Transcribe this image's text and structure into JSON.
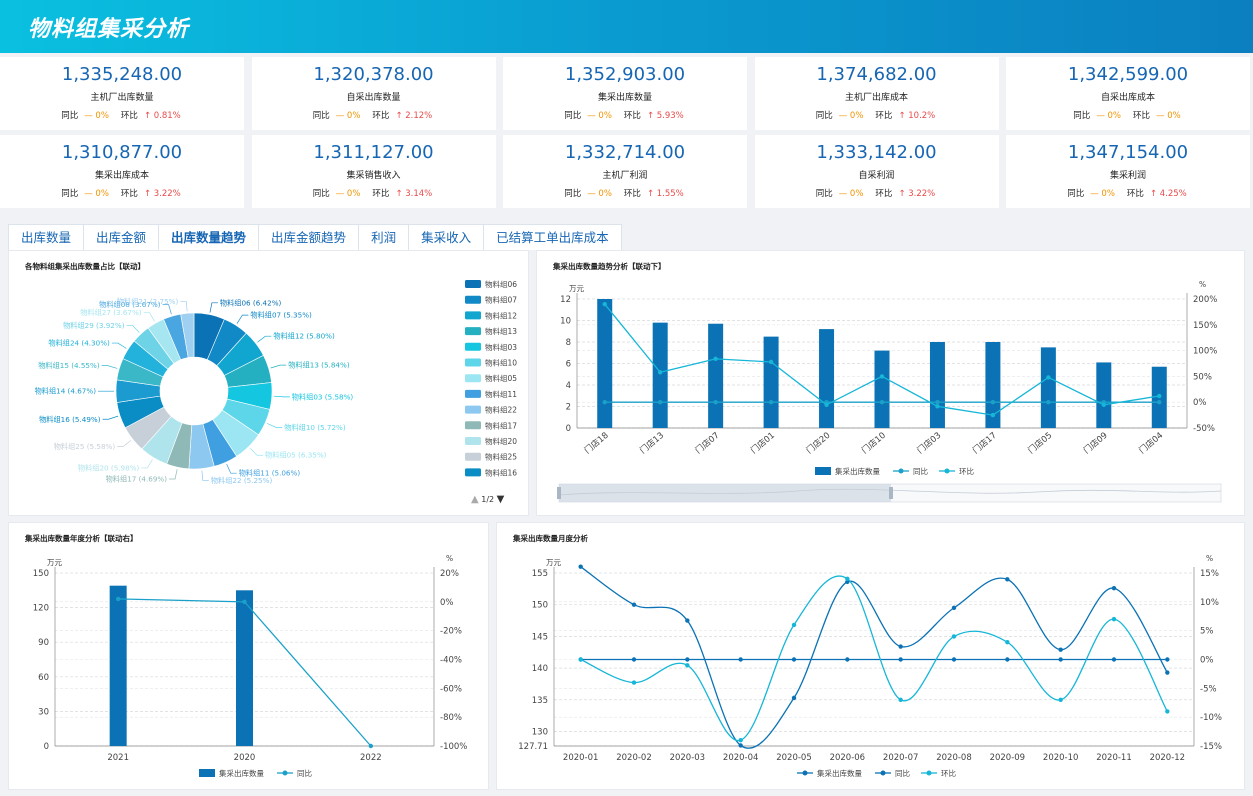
{
  "header": {
    "title": "物料组集采分析"
  },
  "kpis": [
    {
      "value": "1,335,248.00",
      "label": "主机厂出库数量",
      "yoy_label": "同比",
      "yoy": "— 0%",
      "mom_label": "环比",
      "mom": "↑ 0.81%"
    },
    {
      "value": "1,320,378.00",
      "label": "自采出库数量",
      "yoy_label": "同比",
      "yoy": "— 0%",
      "mom_label": "环比",
      "mom": "↑ 2.12%"
    },
    {
      "value": "1,352,903.00",
      "label": "集采出库数量",
      "yoy_label": "同比",
      "yoy": "— 0%",
      "mom_label": "环比",
      "mom": "↑ 5.93%"
    },
    {
      "value": "1,374,682.00",
      "label": "主机厂出库成本",
      "yoy_label": "同比",
      "yoy": "— 0%",
      "mom_label": "环比",
      "mom": "↑ 10.2%"
    },
    {
      "value": "1,342,599.00",
      "label": "自采出库成本",
      "yoy_label": "同比",
      "yoy": "— 0%",
      "mom_label": "环比",
      "mom": "— 0%"
    },
    {
      "value": "1,310,877.00",
      "label": "集采出库成本",
      "yoy_label": "同比",
      "yoy": "— 0%",
      "mom_label": "环比",
      "mom": "↑ 3.22%"
    },
    {
      "value": "1,311,127.00",
      "label": "集采销售收入",
      "yoy_label": "同比",
      "yoy": "— 0%",
      "mom_label": "环比",
      "mom": "↑ 3.14%"
    },
    {
      "value": "1,332,714.00",
      "label": "主机厂利润",
      "yoy_label": "同比",
      "yoy": "— 0%",
      "mom_label": "环比",
      "mom": "↑ 1.55%"
    },
    {
      "value": "1,333,142.00",
      "label": "自采利润",
      "yoy_label": "同比",
      "yoy": "— 0%",
      "mom_label": "环比",
      "mom": "↑ 3.22%"
    },
    {
      "value": "1,347,154.00",
      "label": "集采利润",
      "yoy_label": "同比",
      "yoy": "— 0%",
      "mom_label": "环比",
      "mom": "↑ 4.25%"
    }
  ],
  "tabs": [
    "出库数量",
    "出库金额",
    "出库数量趋势",
    "出库金额趋势",
    "利润",
    "集采收入",
    "已结算工单出库成本"
  ],
  "active_tab": 2,
  "colors": {
    "primary": "#0b72b5",
    "line": "#1aa6cc",
    "accent": "#16b6d8",
    "up": "#e84a4a",
    "flat": "#f29300"
  },
  "pie_panel": {
    "title": "各物料组集采出库数量占比【联动】",
    "pager": "1/2"
  },
  "bar_panel": {
    "title": "集采出库数量趋势分析【联动下】"
  },
  "year_panel": {
    "title": "集采出库数量年度分析【联动右】"
  },
  "month_panel": {
    "title": "集采出库数量月度分析"
  },
  "chart_data": [
    {
      "type": "pie",
      "slices": [
        {
          "name": "物料组06",
          "label": "物料组06 (6.42%)",
          "value": 6.42,
          "color": "#0b72b5"
        },
        {
          "name": "物料组07",
          "label": "物料组07 (5.35%)",
          "value": 5.35,
          "color": "#1089c6"
        },
        {
          "name": "物料组12",
          "label": "物料组12 (5.80%)",
          "value": 5.8,
          "color": "#10a6cf"
        },
        {
          "name": "物料组13",
          "label": "物料组13 (5.84%)",
          "value": 5.84,
          "color": "#24b0c0"
        },
        {
          "name": "物料组03",
          "label": "物料组03 (5.58%)",
          "value": 5.58,
          "color": "#14c6e0"
        },
        {
          "name": "物料组10",
          "label": "物料组10 (5.72%)",
          "value": 5.72,
          "color": "#5dd6ea"
        },
        {
          "name": "物料组05",
          "label": "物料组05 (6.35%)",
          "value": 6.35,
          "color": "#9be6f2"
        },
        {
          "name": "物料组11",
          "label": "物料组11 (5.06%)",
          "value": 5.06,
          "color": "#3f9fe0"
        },
        {
          "name": "物料组22",
          "label": "物料组22 (5.25%)",
          "value": 5.25,
          "color": "#8cc8f0"
        },
        {
          "name": "物料组17",
          "label": "物料组17 (4.69%)",
          "value": 4.69,
          "color": "#8fb9b6"
        },
        {
          "name": "物料组20",
          "label": "物料组20 (5.98%)",
          "value": 5.98,
          "color": "#b0e4ec"
        },
        {
          "name": "物料组25",
          "label": "物料组25 (5.58%)",
          "value": 5.58,
          "color": "#c7d0d8"
        },
        {
          "name": "物料组16",
          "label": "物料组16 (5.49%)",
          "value": 5.49,
          "color": "#0a8cc4"
        },
        {
          "name": "物料组14",
          "label": "物料组14 (4.67%)",
          "value": 4.67,
          "color": "#1b9bd0"
        },
        {
          "name": "物料组15",
          "label": "物料组15 (4.55%)",
          "value": 4.55,
          "color": "#3ab8c8"
        },
        {
          "name": "物料组24",
          "label": "物料组24 (4.30%)",
          "value": 4.3,
          "color": "#22b2dc"
        },
        {
          "name": "物料组29",
          "label": "物料组29 (3.92%)",
          "value": 3.92,
          "color": "#6fd3e8"
        },
        {
          "name": "物料组27",
          "label": "物料组27 (3.67%)",
          "value": 3.67,
          "color": "#a6e6f0"
        },
        {
          "name": "物料组08",
          "label": "物料组08 (3.67%)",
          "value": 3.67,
          "color": "#4aa6e0"
        },
        {
          "name": "物料组21",
          "label": "物料组21 (2.75%)",
          "value": 2.75,
          "color": "#9fd0f2"
        }
      ],
      "legend": [
        "物料组06",
        "物料组07",
        "物料组12",
        "物料组13",
        "物料组03",
        "物料组10",
        "物料组05",
        "物料组11",
        "物料组22",
        "物料组17",
        "物料组20",
        "物料组25",
        "物料组16"
      ]
    },
    {
      "type": "bar",
      "categories": [
        "门店18",
        "门店13",
        "门店07",
        "门店01",
        "门店20",
        "门店10",
        "门店03",
        "门店17",
        "门店05",
        "门店09",
        "门店04"
      ],
      "ylabel": "万元",
      "ylabel2": "%",
      "ylim": [
        0,
        12
      ],
      "yticks": [
        0,
        2,
        4,
        6,
        8,
        10,
        12
      ],
      "y2lim": [
        -50,
        200
      ],
      "y2ticks": [
        "-50%",
        "0%",
        "50%",
        "100%",
        "150%",
        "200%"
      ],
      "series": [
        {
          "name": "集采出库数量",
          "values": [
            12.0,
            9.8,
            9.7,
            8.5,
            9.2,
            7.2,
            8.0,
            8.0,
            7.5,
            6.1,
            5.7
          ]
        },
        {
          "name": "同比",
          "values": [
            0,
            0,
            0,
            0,
            0,
            0,
            0,
            0,
            0,
            0,
            0
          ]
        },
        {
          "name": "环比",
          "values": [
            190,
            58,
            84,
            78,
            -5,
            50,
            -8,
            -25,
            48,
            -5,
            12
          ]
        }
      ]
    },
    {
      "type": "bar",
      "categories": [
        "2021",
        "2020",
        "2022"
      ],
      "ylabel": "万元",
      "ylabel2": "%",
      "ylim": [
        0,
        150
      ],
      "yticks": [
        0,
        30,
        60,
        90,
        120,
        150
      ],
      "y2lim": [
        -100,
        20
      ],
      "y2ticks": [
        "-100%",
        "-80%",
        "-60%",
        "-40%",
        "-20%",
        "0%",
        "20%"
      ],
      "series": [
        {
          "name": "集采出库数量",
          "values": [
            139,
            135,
            0
          ]
        },
        {
          "name": "同比",
          "values": [
            2,
            0,
            -100
          ]
        }
      ]
    },
    {
      "type": "line",
      "categories": [
        "2020-01",
        "2020-02",
        "2020-03",
        "2020-04",
        "2020-05",
        "2020-06",
        "2020-07",
        "2020-08",
        "2020-09",
        "2020-10",
        "2020-11",
        "2020-12"
      ],
      "ylabel": "万元",
      "ylabel2": "%",
      "ylim": [
        127.71,
        155
      ],
      "yticks": [
        "127.71",
        "130",
        "135",
        "140",
        "145",
        "150",
        "155"
      ],
      "y2lim": [
        -15,
        15
      ],
      "y2ticks": [
        "-15%",
        "-10%",
        "-5%",
        "0%",
        "5%",
        "10%",
        "15%"
      ],
      "series": [
        {
          "name": "集采出库数量",
          "values": [
            156.0,
            150.0,
            147.5,
            127.8,
            135.3,
            153.6,
            143.4,
            149.5,
            154.0,
            142.9,
            152.6,
            139.3
          ]
        },
        {
          "name": "同比",
          "values": [
            0,
            0,
            0,
            0,
            0,
            0,
            0,
            0,
            0,
            0,
            0,
            0
          ]
        },
        {
          "name": "环比",
          "values": [
            0,
            -4,
            -1,
            -14,
            6,
            14,
            -7,
            4,
            3,
            -7,
            7,
            -9
          ]
        }
      ]
    }
  ]
}
